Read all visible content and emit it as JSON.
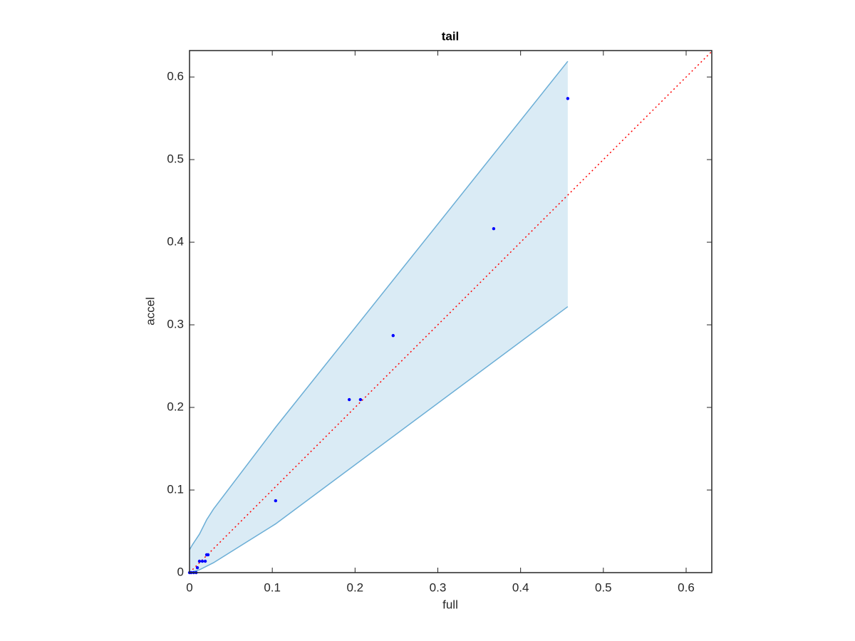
{
  "chart_data": {
    "type": "scatter",
    "title": "tail",
    "xlabel": "full",
    "ylabel": "accel",
    "xlim": [
      0,
      0.631
    ],
    "ylim": [
      0,
      0.632
    ],
    "xticks": [
      0,
      0.1,
      0.2,
      0.3,
      0.4,
      0.5,
      0.6
    ],
    "yticks": [
      0,
      0.1,
      0.2,
      0.3,
      0.4,
      0.5,
      0.6
    ],
    "band": {
      "color": "#6baed6",
      "upper": {
        "x": [
          0,
          0.0034,
          0.012,
          0.0207,
          0.029,
          0.104,
          0.457
        ],
        "values": [
          0.0276,
          0.0336,
          0.0466,
          0.064,
          0.077,
          0.176,
          0.619
        ]
      },
      "lower": {
        "x": [
          0,
          0.012,
          0.029,
          0.104,
          0.457
        ],
        "values": [
          0,
          0.0034,
          0.012,
          0.059,
          0.322
        ]
      }
    },
    "reference_line": {
      "color": "#ff0000",
      "x": [
        0,
        0.632
      ],
      "values": [
        0,
        0.632
      ]
    },
    "series": [
      {
        "color": "#0000ff",
        "x": [
          0,
          0.002,
          0.005,
          0.008,
          0.0095,
          0.012,
          0.0155,
          0.019,
          0.0207,
          0.0224,
          0.104,
          0.193,
          0.2065,
          0.246,
          0.3675,
          0.457
        ],
        "values": [
          0,
          0,
          0,
          0,
          0.006,
          0.0138,
          0.0138,
          0.0138,
          0.0216,
          0.0216,
          0.087,
          0.2095,
          0.2095,
          0.287,
          0.4164,
          0.574
        ]
      }
    ]
  }
}
